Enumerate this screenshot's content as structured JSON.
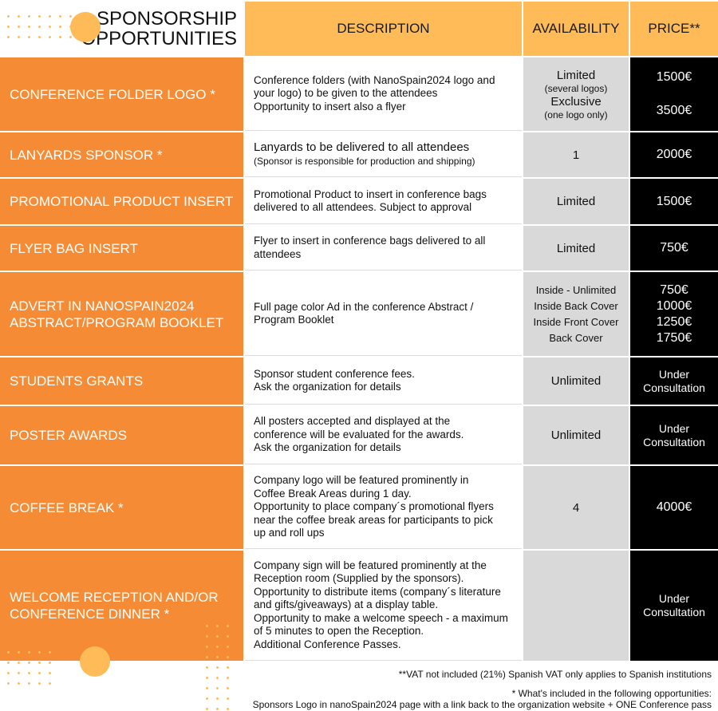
{
  "title": [
    "SPONSORSHIP",
    "OPPORTUNITIES"
  ],
  "headers": {
    "description": "DESCRIPTION",
    "availability": "AVAILABILITY",
    "price": "PRICE**"
  },
  "rows": [
    {
      "name": "CONFERENCE FOLDER LOGO *",
      "description": [
        "Conference folders (with NanoSpain2024 logo and",
        "your logo) to be given to the attendees",
        "Opportunity to insert also a flyer"
      ],
      "availability": [
        "Limited",
        "(several logos)",
        "Exclusive",
        "(one logo only)"
      ],
      "price": [
        "1500€",
        "3500€"
      ]
    },
    {
      "name": "LANYARDS SPONSOR *",
      "description": [
        "Lanyards to be delivered to all attendees",
        "(Sponsor is responsible for production and shipping)"
      ],
      "availability": [
        "1"
      ],
      "price": [
        "2000€"
      ]
    },
    {
      "name": "PROMOTIONAL PRODUCT INSERT",
      "description": [
        "Promotional Product to insert in conference bags",
        "delivered to all attendees. Subject to approval"
      ],
      "availability": [
        "Limited"
      ],
      "price": [
        "1500€"
      ]
    },
    {
      "name": "FLYER BAG INSERT",
      "description": [
        "Flyer to insert in conference bags delivered to all",
        "attendees"
      ],
      "availability": [
        "Limited"
      ],
      "price": [
        "750€"
      ]
    },
    {
      "name": "ADVERT IN NANOSPAIN2024 ABSTRACT/PROGRAM BOOKLET",
      "description": [
        "Full page color Ad in the  conference Abstract /",
        "Program Booklet"
      ],
      "availability": [
        "Inside - Unlimited",
        "Inside Back Cover",
        "Inside Front Cover",
        "Back Cover"
      ],
      "price": [
        "750€",
        "1000€",
        "1250€",
        "1750€"
      ]
    },
    {
      "name": "STUDENTS GRANTS",
      "description": [
        "Sponsor student conference fees.",
        "Ask the organization for details"
      ],
      "availability": [
        "Unlimited"
      ],
      "price": [
        "Under",
        "Consultation"
      ]
    },
    {
      "name": "POSTER AWARDS",
      "description": [
        "All posters accepted and displayed at the",
        "conference will be evaluated for the awards.",
        "Ask the organization for details"
      ],
      "availability": [
        "Unlimited"
      ],
      "price": [
        "Under",
        "Consultation"
      ]
    },
    {
      "name": "COFFEE BREAK *",
      "description": [
        "Company logo will be featured prominently in",
        "Coffee Break Areas during 1 day.",
        "Opportunity to place company´s promotional flyers",
        "near the coffee break areas for participants to pick",
        "up and roll ups"
      ],
      "availability": [
        "4"
      ],
      "price": [
        "4000€"
      ]
    },
    {
      "name": "WELCOME RECEPTION AND/OR CONFERENCE DINNER *",
      "description": [
        "Company sign will be featured prominently at the",
        "Reception room (Supplied by the sponsors).",
        "Opportunity to distribute items (company´s literature",
        "and gifts/giveaways) at a display table.",
        "Opportunity to make a welcome speech - a maximum",
        "of 5 minutes to open the Reception.",
        "Additional Conference Passes."
      ],
      "availability": [],
      "price": [
        "Under",
        "Consultation"
      ]
    }
  ],
  "notes": {
    "vat": "**VAT not included (21%) Spanish VAT only applies to Spanish institutions",
    "included_title": "* What's included in the following opportunities:",
    "included_text": "Sponsors Logo in nanoSpain2024 page with a link back to the organization website + ONE Conference pass"
  },
  "colors": {
    "orange": "#F58B34",
    "header": "#FEBB57",
    "gray": "#D9D9D9",
    "black": "#000000"
  }
}
